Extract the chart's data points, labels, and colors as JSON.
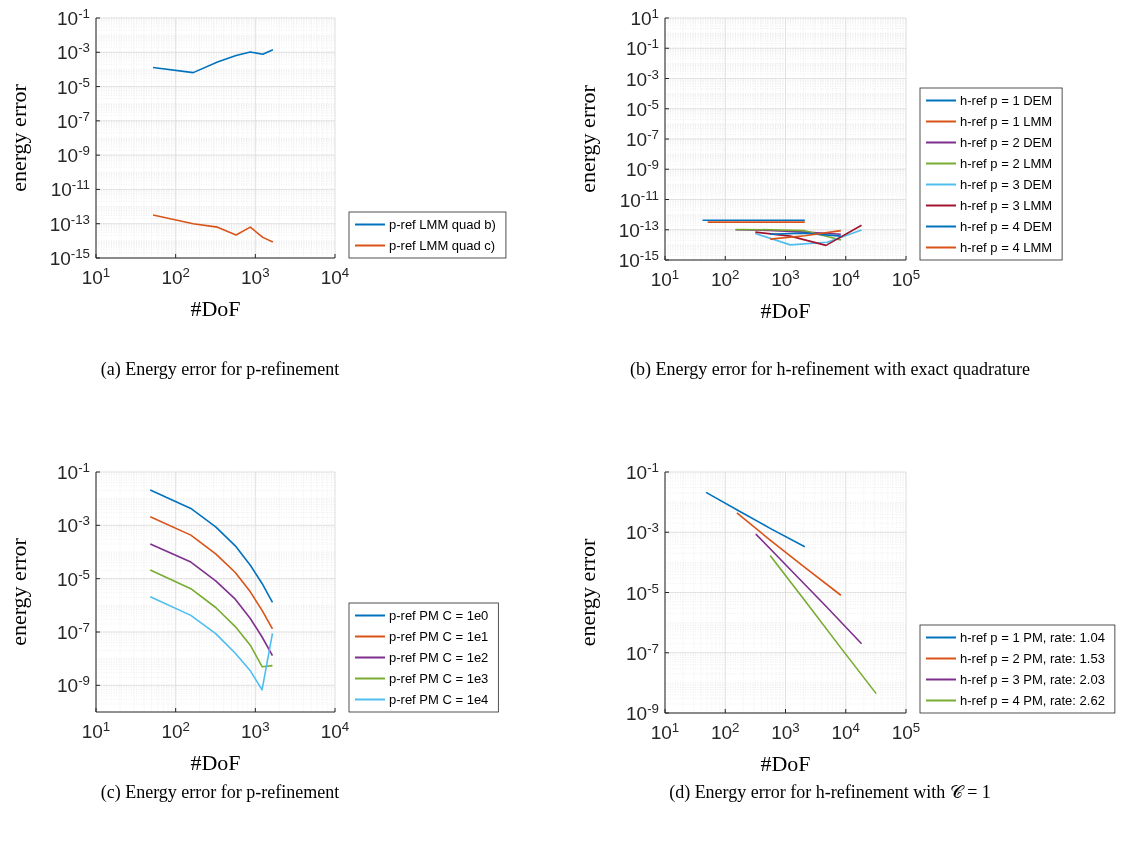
{
  "chart_data": [
    {
      "type": "line",
      "xlabel": "#DoF",
      "ylabel": "energy error",
      "log": "xy",
      "grid": true,
      "legend": "bottom right",
      "line_style": "solid",
      "xlim": [
        10,
        10000
      ],
      "xticks": [
        {
          "value": 10,
          "label": "10$^{1}$"
        },
        {
          "value": 100,
          "label": "10$^{2}$"
        },
        {
          "value": 1000,
          "label": "10$^{3}$"
        },
        {
          "value": 10000,
          "label": "10$^{4}$"
        }
      ],
      "ylim": [
        1e-15,
        0.1
      ],
      "yticks": [
        {
          "value": 1e-15,
          "label": "10$^{-15}$"
        },
        {
          "value": 1e-13,
          "label": "10$^{-13}$"
        },
        {
          "value": 1e-11,
          "label": "10$^{-11}$"
        },
        {
          "value": 1e-09,
          "label": "10$^{-9}$"
        },
        {
          "value": 1e-07,
          "label": "10$^{-7}$"
        },
        {
          "value": 1e-05,
          "label": "10$^{-5}$"
        },
        {
          "value": 0.001,
          "label": "10$^{-3}$"
        },
        {
          "value": 0.1,
          "label": "10$^{-1}$"
        }
      ],
      "annotations": [
        "(a) Energy error for p-refinement"
      ],
      "series": [
        {
          "name": "p-ref LMM quad b)",
          "color": "#0072bd",
          "x": [
            52,
            166,
            335,
            573,
            865,
            1240,
            1660
          ],
          "values": [
            0.00013,
            6.5e-05,
            0.00027,
            0.00065,
            0.00105,
            0.00077,
            0.0014
          ]
        },
        {
          "name": "p-ref LMM quad c)",
          "color": "#d95319",
          "x": [
            52,
            166,
            335,
            573,
            865,
            1240,
            1660
          ],
          "values": [
            3.2e-13,
            1e-13,
            6.3e-14,
            2.2e-14,
            6.3e-14,
            1.6e-14,
            8.5e-15
          ]
        }
      ]
    },
    {
      "type": "line",
      "xlabel": "#DoF",
      "ylabel": "energy error",
      "log": "xy",
      "grid": true,
      "legend": "bottom right",
      "line_style": "solid",
      "xlim": [
        10,
        100000
      ],
      "xticks": [
        {
          "value": 10,
          "label": "10$^{1}$"
        },
        {
          "value": 100,
          "label": "10$^{2}$"
        },
        {
          "value": 1000,
          "label": "10$^{3}$"
        },
        {
          "value": 10000,
          "label": "10$^{4}$"
        },
        {
          "value": 100000,
          "label": "10$^{5}$"
        }
      ],
      "ylim": [
        1e-15,
        10
      ],
      "yticks": [
        {
          "value": 1e-15,
          "label": "10$^{-15}$"
        },
        {
          "value": 1e-13,
          "label": "10$^{-13}$"
        },
        {
          "value": 1e-11,
          "label": "10$^{-11}$"
        },
        {
          "value": 1e-09,
          "label": "10$^{-9}$"
        },
        {
          "value": 1e-07,
          "label": "10$^{-7}$"
        },
        {
          "value": 1e-05,
          "label": "10$^{-5}$"
        },
        {
          "value": 0.001,
          "label": "10$^{-3}$"
        },
        {
          "value": 0.1,
          "label": "10$^{-1}$"
        },
        {
          "value": 10,
          "label": "10$^{1}$"
        }
      ],
      "annotations": [
        "(b) Energy error for h-refinement with exact quadrature"
      ],
      "series": [
        {
          "name": "h-ref p = 1 DEM",
          "color": "#0072bd",
          "x": [
            42,
            150,
            550,
            2090
          ],
          "values": [
            4.2e-13,
            4.2e-13,
            4.2e-13,
            4.2e-13
          ]
        },
        {
          "name": "h-ref p = 1 LMM",
          "color": "#d95319",
          "x": [
            51,
            150,
            550,
            2090
          ],
          "values": [
            3.2e-13,
            3.2e-13,
            3.2e-13,
            3.2e-13
          ]
        },
        {
          "name": "h-ref p = 2 DEM",
          "color": "#7e2f8e",
          "x": [
            148,
            556,
            2090,
            8300
          ],
          "values": [
            1e-13,
            9e-14,
            7e-14,
            5e-14
          ]
        },
        {
          "name": "h-ref p = 2 LMM",
          "color": "#77ac30",
          "x": [
            150,
            556,
            2090,
            8300
          ],
          "values": [
            1.05e-13,
            1e-13,
            8.7e-14,
            2.1e-14
          ]
        },
        {
          "name": "h-ref p = 3 DEM",
          "color": "#4dbeee",
          "x": [
            316,
            1200,
            4900,
            18300
          ],
          "values": [
            5.6e-14,
            1e-14,
            1.5e-14,
            9.8e-14
          ]
        },
        {
          "name": "h-ref p = 3 LMM",
          "color": "#a2142f",
          "x": [
            316,
            1200,
            4700,
            18300
          ],
          "values": [
            7e-14,
            3.8e-14,
            9.3e-15,
            2e-13
          ]
        },
        {
          "name": "h-ref p = 4 DEM",
          "color": "#0072bd",
          "x": [
            556,
            2090,
            8300
          ],
          "values": [
            5e-14,
            6e-14,
            3.8e-14
          ]
        },
        {
          "name": "h-ref p = 4 LMM",
          "color": "#d95319",
          "x": [
            556,
            2090,
            8300
          ],
          "values": [
            2.4e-14,
            4e-14,
            8.7e-14
          ]
        }
      ]
    },
    {
      "type": "line",
      "xlabel": "#DoF",
      "ylabel": "energy error",
      "log": "xy",
      "grid": true,
      "legend": "bottom right",
      "line_style": "solid",
      "xlim": [
        10,
        10000
      ],
      "xticks": [
        {
          "value": 10,
          "label": "10$^{1}$"
        },
        {
          "value": 100,
          "label": "10$^{2}$"
        },
        {
          "value": 1000,
          "label": "10$^{3}$"
        },
        {
          "value": 10000,
          "label": "10$^{4}$"
        }
      ],
      "ylim": [
        1e-10,
        0.1
      ],
      "yticks": [
        {
          "value": 1e-09,
          "label": "10$^{-9}$"
        },
        {
          "value": 1e-07,
          "label": "10$^{-7}$"
        },
        {
          "value": 1e-05,
          "label": "10$^{-5}$"
        },
        {
          "value": 0.001,
          "label": "10$^{-3}$"
        },
        {
          "value": 0.1,
          "label": "10$^{-1}$"
        }
      ],
      "annotations": [
        "(c) Energy error for p-refinement"
      ],
      "series": [
        {
          "name": "p-ref PM C = 1e0",
          "color": "#0072bd",
          "x": [
            48,
            155,
            318,
            560,
            865,
            1215,
            1640
          ],
          "values": [
            0.021,
            0.0043,
            0.00088,
            0.00017,
            3.2e-05,
            6.6e-06,
            1.3e-06
          ]
        },
        {
          "name": "p-ref PM C = 1e1",
          "color": "#d95319",
          "x": [
            48,
            155,
            318,
            560,
            865,
            1215,
            1640
          ],
          "values": [
            0.0021,
            0.00043,
            8.5e-05,
            1.7e-05,
            3.2e-06,
            6.5e-07,
            1.3e-07
          ]
        },
        {
          "name": "p-ref PM C = 1e2",
          "color": "#7e2f8e",
          "x": [
            48,
            155,
            318,
            560,
            865,
            1215,
            1640
          ],
          "values": [
            0.0002,
            4.2e-05,
            8.3e-06,
            1.7e-06,
            3.2e-07,
            6.5e-08,
            1.3e-08
          ]
        },
        {
          "name": "p-ref PM C = 1e3",
          "color": "#77ac30",
          "x": [
            48,
            155,
            318,
            560,
            865,
            1215,
            1640
          ],
          "values": [
            2.1e-05,
            4.2e-06,
            8.3e-07,
            1.6e-07,
            3.2e-08,
            5e-09,
            5.5e-09
          ]
        },
        {
          "name": "p-ref PM C = 1e4",
          "color": "#4dbeee",
          "x": [
            48,
            155,
            318,
            560,
            865,
            1215,
            1640
          ],
          "values": [
            2.1e-06,
            4.2e-07,
            8.7e-08,
            1.6e-08,
            3.5e-09,
            6.8e-10,
            8.9e-08
          ]
        }
      ]
    },
    {
      "type": "line",
      "xlabel": "#DoF",
      "ylabel": "energy error",
      "log": "xy",
      "grid": true,
      "legend": "bottom right",
      "line_style": "solid",
      "xlim": [
        10,
        100000
      ],
      "xticks": [
        {
          "value": 10,
          "label": "10$^{1}$"
        },
        {
          "value": 100,
          "label": "10$^{2}$"
        },
        {
          "value": 1000,
          "label": "10$^{3}$"
        },
        {
          "value": 10000,
          "label": "10$^{4}$"
        },
        {
          "value": 100000,
          "label": "10$^{5}$"
        }
      ],
      "ylim": [
        1e-09,
        0.1
      ],
      "yticks": [
        {
          "value": 1e-09,
          "label": "10$^{-9}$"
        },
        {
          "value": 1e-07,
          "label": "10$^{-7}$"
        },
        {
          "value": 1e-05,
          "label": "10$^{-5}$"
        },
        {
          "value": 0.001,
          "label": "10$^{-3}$"
        },
        {
          "value": 0.1,
          "label": "10$^{-1}$"
        }
      ],
      "annotations": [
        "(d) Energy error for h-refinement with 𝒞 = 1"
      ],
      "series": [
        {
          "name": "h-ref p = 1 PM, rate: 1.04",
          "color": "#0072bd",
          "x": [
            48,
            158,
            556,
            2090
          ],
          "values": [
            0.021,
            0.0055,
            0.00135,
            0.00033
          ]
        },
        {
          "name": "h-ref p = 2 PM, rate: 1.53",
          "color": "#d95319",
          "x": [
            156,
            556,
            2090,
            8300
          ],
          "values": [
            0.0044,
            0.00055,
            6.8e-05,
            8.1e-06
          ]
        },
        {
          "name": "h-ref p = 3 PM, rate: 2.03",
          "color": "#7e2f8e",
          "x": [
            322,
            1200,
            4700,
            18300
          ],
          "values": [
            0.00087,
            5.8e-05,
            3.5e-06,
            2e-07
          ]
        },
        {
          "name": "h-ref p = 4 PM, rate: 2.62",
          "color": "#77ac30",
          "x": [
            556,
            2090,
            8300,
            32000
          ],
          "values": [
            0.00017,
            5.4e-06,
            1.45e-07,
            4.4e-09
          ]
        }
      ]
    }
  ]
}
